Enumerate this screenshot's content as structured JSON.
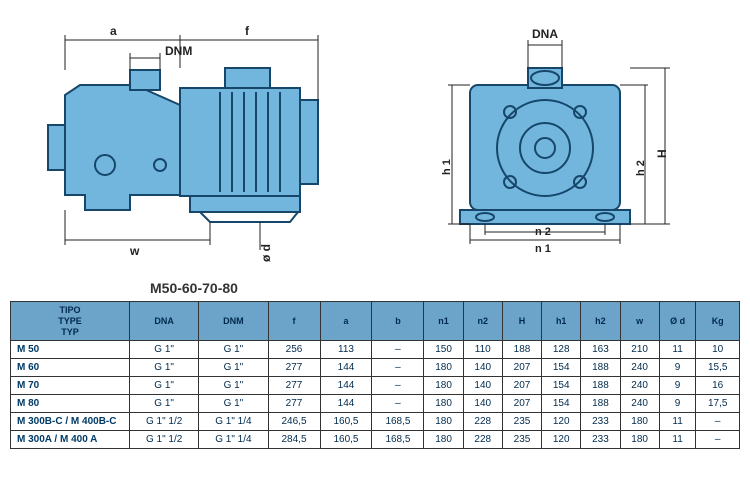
{
  "title": "M50-60-70-80",
  "diagram": {
    "colors": {
      "fill": "#72b6de",
      "stroke": "#16476b",
      "dim_line": "#222222",
      "text": "#222222",
      "bg": "#ffffff"
    },
    "labels": {
      "a": "a",
      "f": "f",
      "DNM": "DNM",
      "DNA": "DNA",
      "w": "w",
      "od": "ø d",
      "h1": "h 1",
      "h2": "h 2",
      "H": "H",
      "n1": "n 1",
      "n2": "n 2"
    }
  },
  "table": {
    "header_bg": "#6ba3c9",
    "header_text_color": "#002a4d",
    "body_text_color": "#002a4d",
    "columns": [
      "TIPO\nTYPE\nTYP",
      "DNA",
      "DNM",
      "f",
      "a",
      "b",
      "n1",
      "n2",
      "H",
      "h1",
      "h2",
      "w",
      "Ø d",
      "Kg"
    ],
    "rows": [
      [
        "M 50",
        "G 1\"",
        "G 1\"",
        "256",
        "113",
        "–",
        "150",
        "110",
        "188",
        "128",
        "163",
        "210",
        "11",
        "10"
      ],
      [
        "M 60",
        "G 1\"",
        "G 1\"",
        "277",
        "144",
        "–",
        "180",
        "140",
        "207",
        "154",
        "188",
        "240",
        "9",
        "15,5"
      ],
      [
        "M 70",
        "G 1\"",
        "G 1\"",
        "277",
        "144",
        "–",
        "180",
        "140",
        "207",
        "154",
        "188",
        "240",
        "9",
        "16"
      ],
      [
        "M 80",
        "G 1\"",
        "G 1\"",
        "277",
        "144",
        "–",
        "180",
        "140",
        "207",
        "154",
        "188",
        "240",
        "9",
        "17,5"
      ],
      [
        "M 300B-C / M 400B-C",
        "G 1\" 1/2",
        "G 1\" 1/4",
        "246,5",
        "160,5",
        "168,5",
        "180",
        "228",
        "235",
        "120",
        "233",
        "180",
        "11",
        "–"
      ],
      [
        "M 300A / M 400 A",
        "G 1\" 1/2",
        "G 1\" 1/4",
        "284,5",
        "160,5",
        "168,5",
        "180",
        "228",
        "235",
        "120",
        "233",
        "180",
        "11",
        "–"
      ]
    ]
  }
}
